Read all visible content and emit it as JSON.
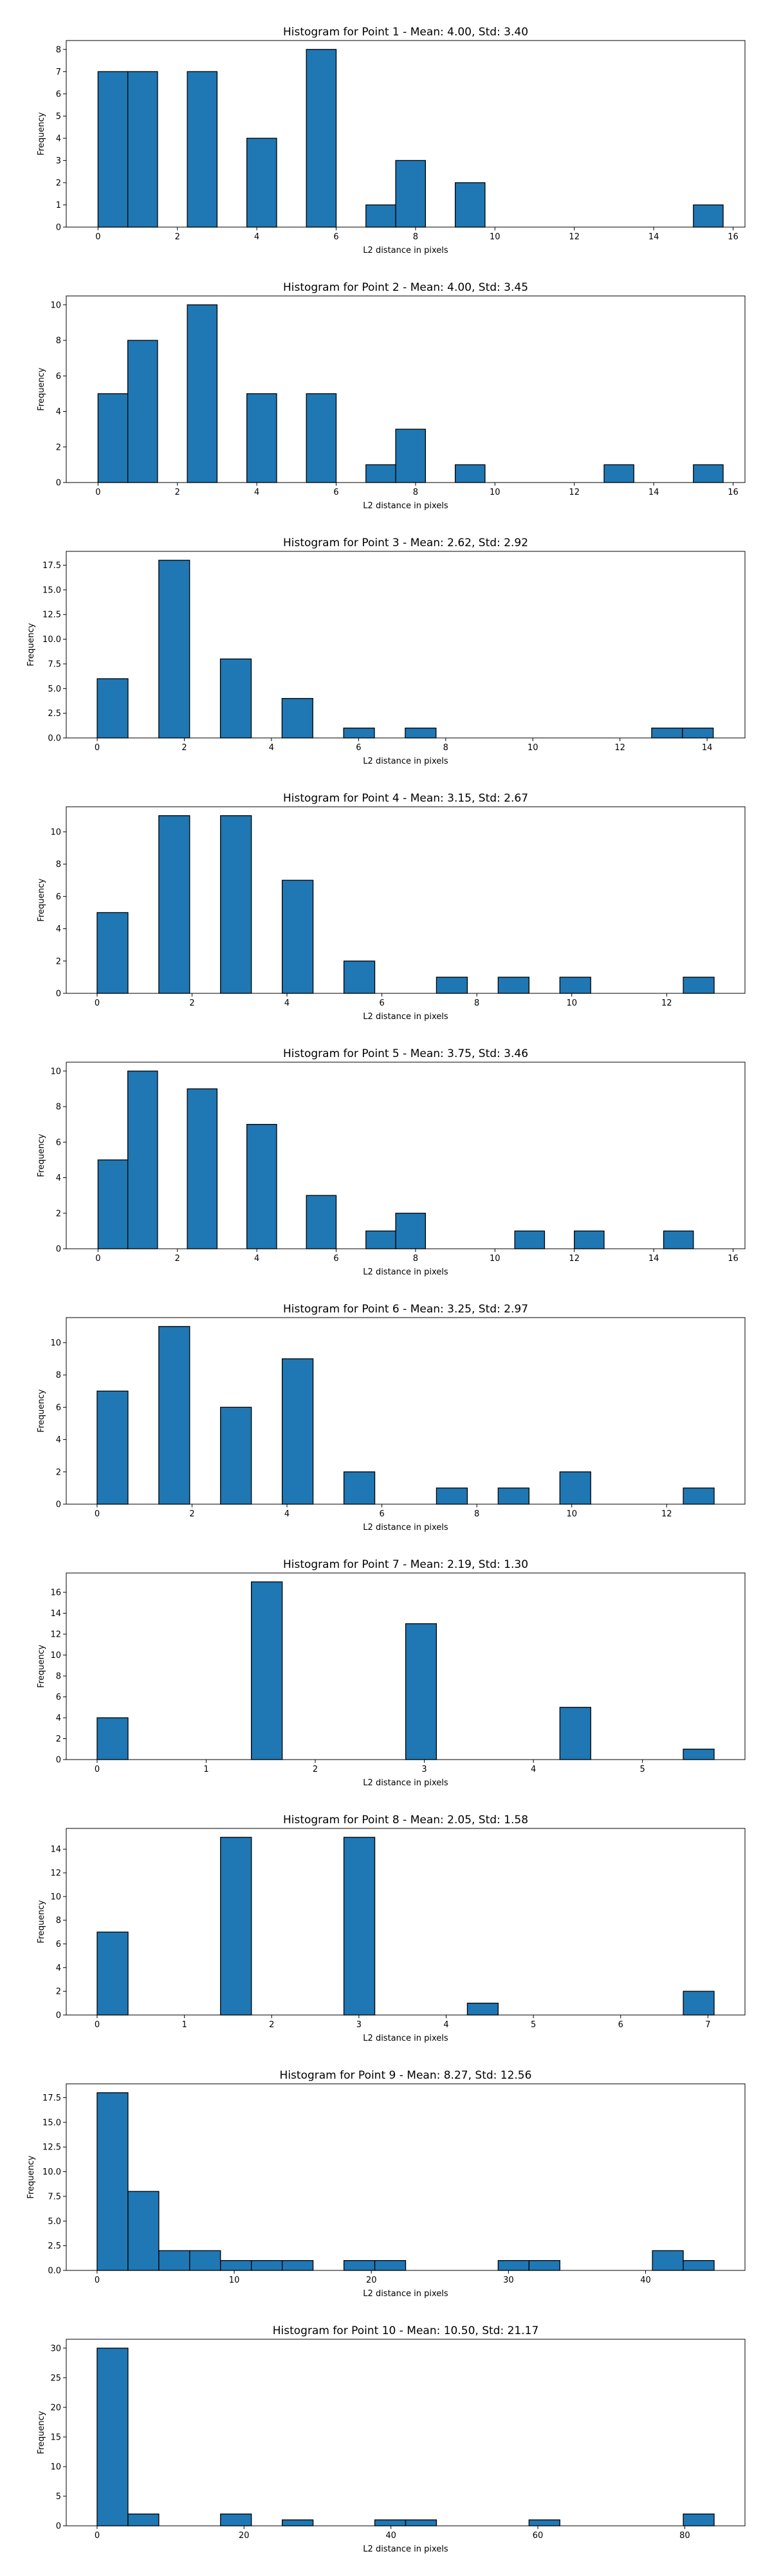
{
  "chart_data": [
    {
      "type": "bar",
      "title": "Histogram for Point 1 - Mean: 4.00, Std: 3.40",
      "xlabel": "L2 distance in pixels",
      "ylabel": "Frequency",
      "xlim": [
        -0.8,
        16.3
      ],
      "ylim": [
        0,
        8.4
      ],
      "xticks": [
        0,
        2,
        4,
        6,
        8,
        10,
        12,
        14,
        16
      ],
      "yticks": [
        0,
        1,
        2,
        3,
        4,
        5,
        6,
        7,
        8
      ],
      "bin_edges": [
        0.0,
        0.75,
        1.5,
        2.25,
        3.0,
        3.75,
        4.5,
        5.25,
        6.0,
        6.75,
        7.5,
        8.25,
        9.0,
        9.75,
        10.5,
        11.25,
        12.0,
        12.75,
        13.5,
        14.25,
        15.0,
        15.75
      ],
      "values": [
        7,
        7,
        0,
        7,
        0,
        4,
        0,
        8,
        0,
        1,
        3,
        0,
        2,
        0,
        0,
        0,
        0,
        0,
        0,
        0,
        1
      ],
      "color": "#1f77b4",
      "edgecolor": "#000000"
    },
    {
      "type": "bar",
      "title": "Histogram for Point 2 - Mean: 4.00, Std: 3.45",
      "xlabel": "L2 distance in pixels",
      "ylabel": "Frequency",
      "xlim": [
        -0.8,
        16.3
      ],
      "ylim": [
        0,
        10.5
      ],
      "xticks": [
        0,
        2,
        4,
        6,
        8,
        10,
        12,
        14,
        16
      ],
      "yticks": [
        0,
        2,
        4,
        6,
        8,
        10
      ],
      "bin_edges": [
        0.0,
        0.75,
        1.5,
        2.25,
        3.0,
        3.75,
        4.5,
        5.25,
        6.0,
        6.75,
        7.5,
        8.25,
        9.0,
        9.75,
        10.5,
        11.25,
        12.0,
        12.75,
        13.5,
        14.25,
        15.0,
        15.75
      ],
      "values": [
        5,
        8,
        0,
        10,
        0,
        5,
        0,
        5,
        0,
        1,
        3,
        0,
        1,
        0,
        0,
        0,
        0,
        1,
        0,
        0,
        1
      ],
      "color": "#1f77b4",
      "edgecolor": "#000000"
    },
    {
      "type": "bar",
      "title": "Histogram for Point 3 - Mean: 2.62, Std: 2.92",
      "xlabel": "L2 distance in pixels",
      "ylabel": "Frequency",
      "xlim": [
        -0.71,
        14.87
      ],
      "ylim": [
        0,
        18.9
      ],
      "xticks": [
        0,
        2,
        4,
        6,
        8,
        10,
        12,
        14
      ],
      "yticks": [
        0,
        2.5,
        5,
        7.5,
        10,
        12.5,
        15,
        17.5
      ],
      "ytick_labels": [
        "0.0",
        "2.5",
        "5.0",
        "7.5",
        "10.0",
        "12.5",
        "15.0",
        "17.5"
      ],
      "bin_edges": [
        0.0,
        0.707,
        1.414,
        2.121,
        2.828,
        3.536,
        4.243,
        4.95,
        5.657,
        6.364,
        7.071,
        7.778,
        8.485,
        9.192,
        9.899,
        10.607,
        11.314,
        12.021,
        12.728,
        13.435,
        14.142
      ],
      "values": [
        6,
        0,
        18,
        0,
        8,
        0,
        4,
        0,
        1,
        0,
        1,
        0,
        0,
        0,
        0,
        0,
        0,
        0,
        1,
        1
      ],
      "color": "#1f77b4",
      "edgecolor": "#000000"
    },
    {
      "type": "bar",
      "title": "Histogram for Point 4 - Mean: 3.15, Std: 2.67",
      "xlabel": "L2 distance in pixels",
      "ylabel": "Frequency",
      "xlim": [
        -0.65,
        13.65
      ],
      "ylim": [
        0,
        11.55
      ],
      "xticks": [
        0,
        2,
        4,
        6,
        8,
        10,
        12
      ],
      "yticks": [
        0,
        2,
        4,
        6,
        8,
        10
      ],
      "bin_edges": [
        0.0,
        0.65,
        1.3,
        1.95,
        2.6,
        3.25,
        3.9,
        4.55,
        5.2,
        5.85,
        6.5,
        7.15,
        7.8,
        8.45,
        9.1,
        9.75,
        10.4,
        11.05,
        11.7,
        12.35,
        13.0
      ],
      "values": [
        5,
        0,
        11,
        0,
        11,
        0,
        7,
        0,
        2,
        0,
        0,
        1,
        0,
        1,
        0,
        1,
        0,
        0,
        0,
        1
      ],
      "color": "#1f77b4",
      "edgecolor": "#000000"
    },
    {
      "type": "bar",
      "title": "Histogram for Point 5 - Mean: 3.75, Std: 3.46",
      "xlabel": "L2 distance in pixels",
      "ylabel": "Frequency",
      "xlim": [
        -0.8,
        16.3
      ],
      "ylim": [
        0,
        10.5
      ],
      "xticks": [
        0,
        2,
        4,
        6,
        8,
        10,
        12,
        14,
        16
      ],
      "yticks": [
        0,
        2,
        4,
        6,
        8,
        10
      ],
      "bin_edges": [
        0.0,
        0.75,
        1.5,
        2.25,
        3.0,
        3.75,
        4.5,
        5.25,
        6.0,
        6.75,
        7.5,
        8.25,
        9.0,
        9.75,
        10.5,
        11.25,
        12.0,
        12.75,
        13.5,
        14.25,
        15.0,
        15.75
      ],
      "values": [
        5,
        10,
        0,
        9,
        0,
        7,
        0,
        3,
        0,
        1,
        2,
        0,
        0,
        0,
        1,
        0,
        1,
        0,
        0,
        1,
        0
      ],
      "color": "#1f77b4",
      "edgecolor": "#000000"
    },
    {
      "type": "bar",
      "title": "Histogram for Point 6 - Mean: 3.25, Std: 2.97",
      "xlabel": "L2 distance in pixels",
      "ylabel": "Frequency",
      "xlim": [
        -0.65,
        13.65
      ],
      "ylim": [
        0,
        11.55
      ],
      "xticks": [
        0,
        2,
        4,
        6,
        8,
        10,
        12
      ],
      "yticks": [
        0,
        2,
        4,
        6,
        8,
        10
      ],
      "bin_edges": [
        0.0,
        0.65,
        1.3,
        1.95,
        2.6,
        3.25,
        3.9,
        4.55,
        5.2,
        5.85,
        6.5,
        7.15,
        7.8,
        8.45,
        9.1,
        9.75,
        10.4,
        11.05,
        11.7,
        12.35,
        13.0
      ],
      "values": [
        7,
        0,
        11,
        0,
        6,
        0,
        9,
        0,
        2,
        0,
        0,
        1,
        0,
        1,
        0,
        2,
        0,
        0,
        0,
        1
      ],
      "color": "#1f77b4",
      "edgecolor": "#000000"
    },
    {
      "type": "bar",
      "title": "Histogram for Point 7 - Mean: 2.19, Std: 1.30",
      "xlabel": "L2 distance in pixels",
      "ylabel": "Frequency",
      "xlim": [
        -0.283,
        5.94
      ],
      "ylim": [
        0,
        17.85
      ],
      "xticks": [
        0,
        1,
        2,
        3,
        4,
        5
      ],
      "yticks": [
        0,
        2,
        4,
        6,
        8,
        10,
        12,
        14,
        16
      ],
      "bin_edges": [
        0.0,
        0.283,
        0.566,
        0.849,
        1.131,
        1.414,
        1.697,
        1.98,
        2.263,
        2.546,
        2.829,
        3.111,
        3.394,
        3.677,
        3.96,
        4.243,
        4.526,
        4.809,
        5.091,
        5.374,
        5.657
      ],
      "values": [
        4,
        0,
        0,
        0,
        0,
        17,
        0,
        0,
        0,
        0,
        13,
        0,
        0,
        0,
        0,
        5,
        0,
        0,
        0,
        1
      ],
      "color": "#1f77b4",
      "edgecolor": "#000000"
    },
    {
      "type": "bar",
      "title": "Histogram for Point 8 - Mean: 2.05, Std: 1.58",
      "xlabel": "L2 distance in pixels",
      "ylabel": "Frequency",
      "xlim": [
        -0.354,
        7.425
      ],
      "ylim": [
        0,
        15.75
      ],
      "xticks": [
        0,
        1,
        2,
        3,
        4,
        5,
        6,
        7
      ],
      "yticks": [
        0,
        2,
        4,
        6,
        8,
        10,
        12,
        14
      ],
      "bin_edges": [
        0.0,
        0.354,
        0.707,
        1.061,
        1.414,
        1.768,
        2.121,
        2.475,
        2.828,
        3.182,
        3.536,
        3.889,
        4.243,
        4.596,
        4.95,
        5.303,
        5.657,
        6.01,
        6.364,
        6.718,
        7.071
      ],
      "values": [
        7,
        0,
        0,
        0,
        15,
        0,
        0,
        0,
        15,
        0,
        0,
        0,
        1,
        0,
        0,
        0,
        0,
        0,
        0,
        2
      ],
      "color": "#1f77b4",
      "edgecolor": "#000000"
    },
    {
      "type": "bar",
      "title": "Histogram for Point 9 - Mean: 8.27, Std: 12.56",
      "xlabel": "L2 distance in pixels",
      "ylabel": "Frequency",
      "xlim": [
        -2.25,
        47.25
      ],
      "ylim": [
        0,
        18.9
      ],
      "xticks": [
        0,
        10,
        20,
        30,
        40
      ],
      "yticks": [
        0,
        2.5,
        5,
        7.5,
        10,
        12.5,
        15,
        17.5
      ],
      "ytick_labels": [
        "0.0",
        "2.5",
        "5.0",
        "7.5",
        "10.0",
        "12.5",
        "15.0",
        "17.5"
      ],
      "bin_edges": [
        0.0,
        2.25,
        4.5,
        6.75,
        9.0,
        11.25,
        13.5,
        15.75,
        18.0,
        20.25,
        22.5,
        24.75,
        27.0,
        29.25,
        31.5,
        33.75,
        36.0,
        38.25,
        40.5,
        42.75,
        45.0
      ],
      "values": [
        18,
        8,
        2,
        2,
        1,
        1,
        1,
        0,
        1,
        1,
        0,
        0,
        0,
        1,
        1,
        0,
        0,
        0,
        2,
        1
      ],
      "color": "#1f77b4",
      "edgecolor": "#000000"
    },
    {
      "type": "bar",
      "title": "Histogram for Point 10 - Mean: 10.50, Std: 21.17",
      "xlabel": "L2 distance in pixels",
      "ylabel": "Frequency",
      "xlim": [
        -4.2,
        88.2
      ],
      "ylim": [
        0,
        31.5
      ],
      "xticks": [
        0,
        20,
        40,
        60,
        80
      ],
      "yticks": [
        0,
        5,
        10,
        15,
        20,
        25,
        30
      ],
      "bin_edges": [
        0,
        4.2,
        8.4,
        12.6,
        16.8,
        21.0,
        25.2,
        29.4,
        33.6,
        37.8,
        42.0,
        46.2,
        50.4,
        54.6,
        58.8,
        63.0,
        67.2,
        71.4,
        75.6,
        79.8,
        84.0
      ],
      "values": [
        30,
        2,
        0,
        0,
        2,
        0,
        1,
        0,
        0,
        1,
        1,
        0,
        0,
        0,
        1,
        0,
        0,
        0,
        0,
        2
      ],
      "color": "#1f77b4",
      "edgecolor": "#000000"
    }
  ]
}
